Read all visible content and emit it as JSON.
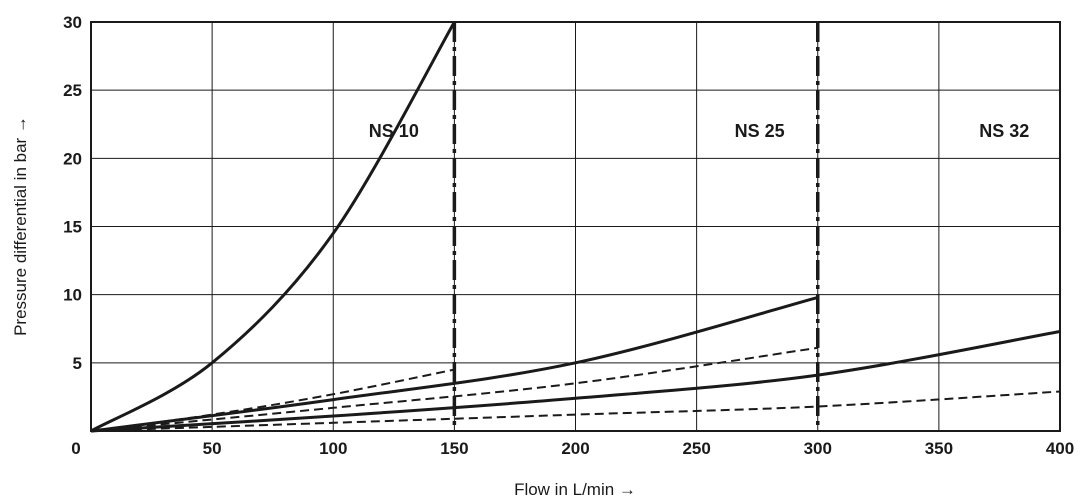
{
  "chart_data": {
    "type": "line",
    "title": "",
    "xlabel": "Flow in L/min →",
    "ylabel": "Pressure differential in bar →",
    "xlim": [
      0,
      400
    ],
    "ylim": [
      0,
      30
    ],
    "xticks": [
      0,
      50,
      100,
      150,
      200,
      250,
      300,
      350,
      400
    ],
    "yticks": [
      5,
      10,
      15,
      20,
      25,
      30
    ],
    "origin_label": "0",
    "grid": true,
    "size_labels": [
      {
        "text": "NS 10",
        "x": 125,
        "y": 22
      },
      {
        "text": "NS 25",
        "x": 276,
        "y": 22
      },
      {
        "text": "NS 32",
        "x": 377,
        "y": 22
      }
    ],
    "limit_lines": [
      {
        "x": 150
      },
      {
        "x": 300
      }
    ],
    "series": [
      {
        "style": "solid",
        "x": [
          0,
          50,
          100,
          150
        ],
        "y": [
          0,
          5,
          14.5,
          30
        ]
      },
      {
        "style": "dashed",
        "x": [
          0,
          50,
          100,
          150
        ],
        "y": [
          0,
          1.2,
          2.7,
          4.5
        ]
      },
      {
        "style": "solid",
        "x": [
          0,
          100,
          200,
          300
        ],
        "y": [
          0,
          2.3,
          5.0,
          9.8
        ]
      },
      {
        "style": "dashed",
        "x": [
          0,
          100,
          200,
          300
        ],
        "y": [
          0,
          1.7,
          3.5,
          6.1
        ]
      },
      {
        "style": "solid",
        "x": [
          0,
          100,
          200,
          300,
          400
        ],
        "y": [
          0,
          1.1,
          2.4,
          4.1,
          7.3
        ]
      },
      {
        "style": "dashed",
        "x": [
          0,
          100,
          200,
          300,
          400
        ],
        "y": [
          0,
          0.6,
          1.2,
          1.8,
          2.9
        ]
      }
    ],
    "colors": {
      "ink": "#1a1a1a",
      "background": "#ffffff"
    }
  }
}
